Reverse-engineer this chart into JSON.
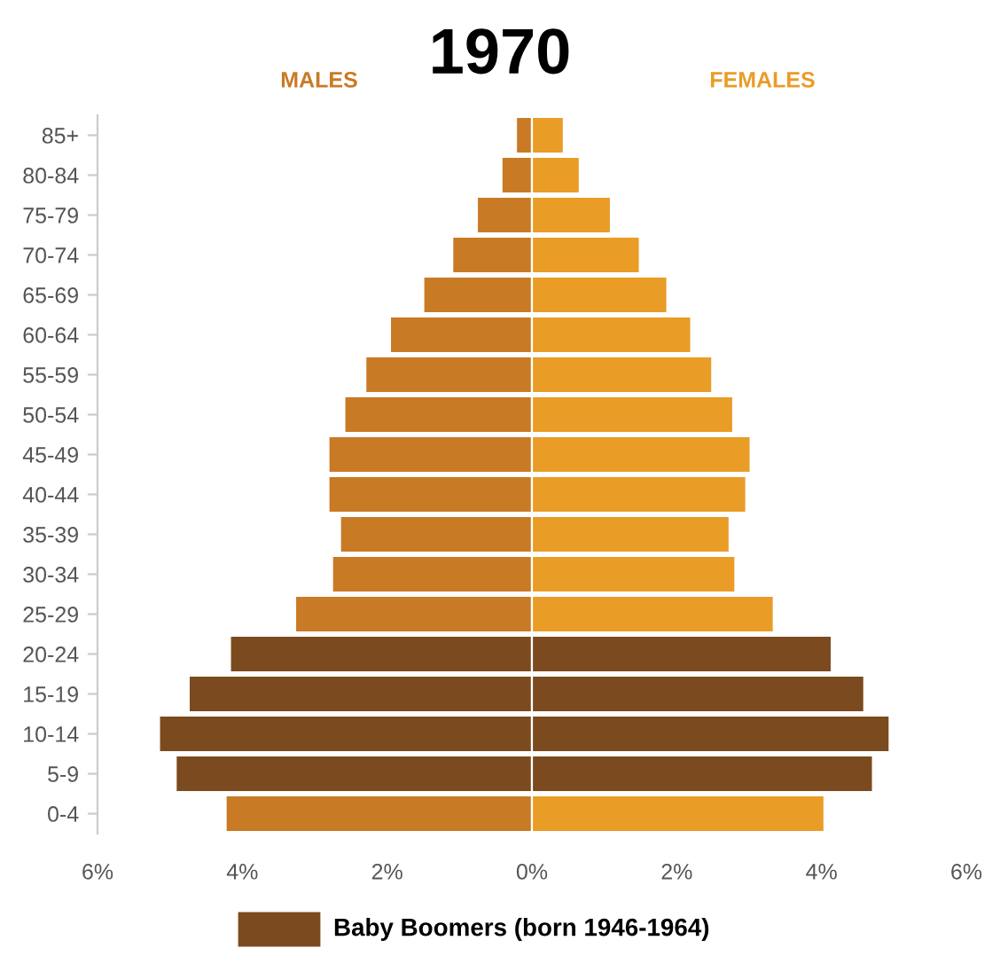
{
  "chart_data": {
    "type": "bar",
    "orientation": "horizontal",
    "stacked": true,
    "title": "1970",
    "categories": [
      "85+",
      "80-84",
      "75-79",
      "70-74",
      "65-69",
      "60-64",
      "55-59",
      "50-54",
      "45-49",
      "40-44",
      "35-39",
      "30-34",
      "25-29",
      "20-24",
      "15-19",
      "10-14",
      "5-9",
      "0-4"
    ],
    "series": [
      {
        "name": "MALES",
        "color": "#c97a25",
        "colors": [
          "#c97a25",
          "#c97a25",
          "#c97a25",
          "#c97a25",
          "#c97a25",
          "#c97a25",
          "#c97a25",
          "#c97a25",
          "#c97a25",
          "#c97a25",
          "#c97a25",
          "#c97a25",
          "#c97a25",
          "#7b4a1e",
          "#7b4a1e",
          "#7b4a1e",
          "#7b4a1e",
          "#c97a25"
        ],
        "values": [
          -0.22,
          -0.42,
          -0.76,
          -1.1,
          -1.5,
          -1.96,
          -2.3,
          -2.59,
          -2.81,
          -2.81,
          -2.65,
          -2.76,
          -3.27,
          -4.17,
          -4.74,
          -5.15,
          -4.92,
          -4.23
        ]
      },
      {
        "name": "FEMALES",
        "color": "#e99c26",
        "colors": [
          "#e99c26",
          "#e99c26",
          "#e99c26",
          "#e99c26",
          "#e99c26",
          "#e99c26",
          "#e99c26",
          "#e99c26",
          "#e99c26",
          "#e99c26",
          "#e99c26",
          "#e99c26",
          "#e99c26",
          "#7b4a1e",
          "#7b4a1e",
          "#7b4a1e",
          "#7b4a1e",
          "#e99c26"
        ],
        "values": [
          0.44,
          0.66,
          1.09,
          1.49,
          1.87,
          2.2,
          2.49,
          2.78,
          3.02,
          2.96,
          2.73,
          2.81,
          3.34,
          4.14,
          4.59,
          4.94,
          4.71,
          4.04
        ]
      }
    ],
    "xlim": [
      -6,
      6
    ],
    "xticks": [
      {
        "value": -6,
        "label": "6%"
      },
      {
        "value": -4,
        "label": "4%"
      },
      {
        "value": -2,
        "label": "2%"
      },
      {
        "value": 0,
        "label": "0%"
      },
      {
        "value": 2,
        "label": "2%"
      },
      {
        "value": 4,
        "label": "4%"
      },
      {
        "value": 6,
        "label": "6%"
      }
    ],
    "annotations": [
      "Baby Boomers (born 1946-1964)"
    ],
    "grid": false,
    "legend": false
  }
}
